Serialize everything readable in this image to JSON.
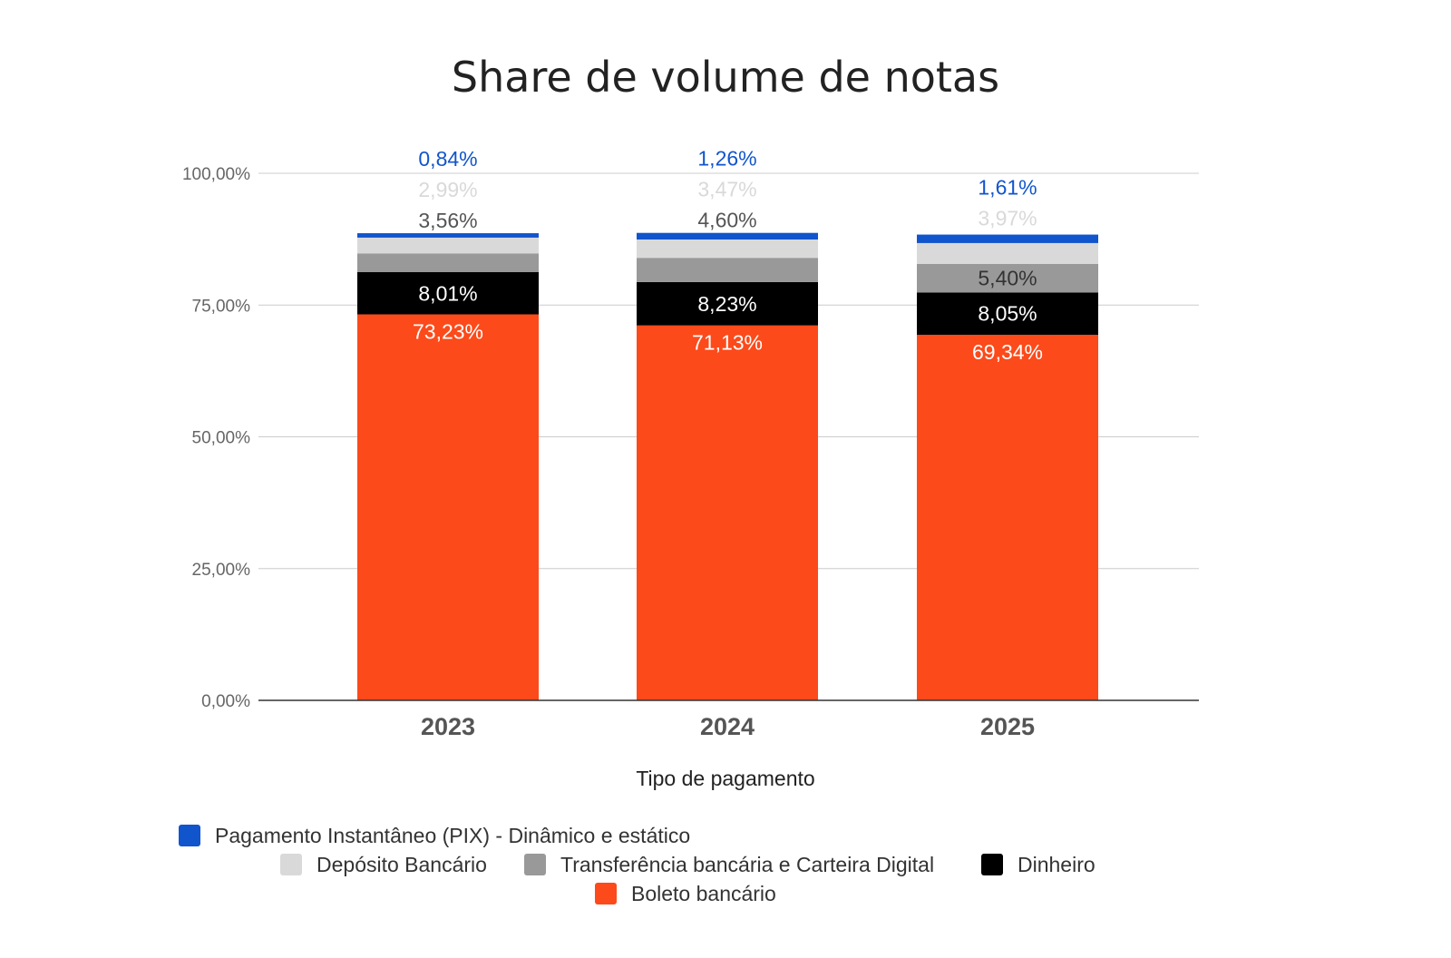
{
  "chart_data": {
    "type": "bar",
    "stacked": true,
    "title": "Share de volume de notas",
    "xlabel": "Tipo de pagamento",
    "ylabel": "",
    "ylim": [
      0,
      100
    ],
    "yticks": [
      "0,00%",
      "25,00%",
      "50,00%",
      "75,00%",
      "100,00%"
    ],
    "categories": [
      "2023",
      "2024",
      "2025"
    ],
    "series": [
      {
        "name": "Boleto bancário",
        "color": "#fc4a1a",
        "values": [
          73.23,
          71.13,
          69.34
        ],
        "labels": [
          "73,23%",
          "71,13%",
          "69,34%"
        ],
        "label_color": "#ffffff"
      },
      {
        "name": "Dinheiro",
        "color": "#000000",
        "values": [
          8.01,
          8.23,
          8.05
        ],
        "labels": [
          "8,01%",
          "8,23%",
          "8,05%"
        ],
        "label_color": "#ffffff"
      },
      {
        "name": "Transferência bancária e Carteira Digital",
        "color": "#999999",
        "values": [
          3.56,
          4.6,
          5.4
        ],
        "labels": [
          "3,56%",
          "4,60%",
          "5,40%"
        ],
        "label_color": "#555555"
      },
      {
        "name": "Depósito Bancário",
        "color": "#d9d9d9",
        "values": [
          2.99,
          3.47,
          3.97
        ],
        "labels": [
          "2,99%",
          "3,47%",
          "3,97%"
        ],
        "label_color": "#d9d9d9"
      },
      {
        "name": "Pagamento Instantâneo (PIX) - Dinâmico e estático",
        "color": "#1155cc",
        "values": [
          0.84,
          1.26,
          1.61
        ],
        "labels": [
          "0,84%",
          "1,26%",
          "1,61%"
        ],
        "label_color": "#1155cc"
      }
    ],
    "legend": {
      "position": "bottom",
      "entries": [
        "Pagamento Instantâneo (PIX) - Dinâmico e estático",
        "Depósito Bancário",
        "Transferência bancária e Carteira Digital",
        "Dinheiro",
        "Boleto bancário"
      ]
    }
  }
}
